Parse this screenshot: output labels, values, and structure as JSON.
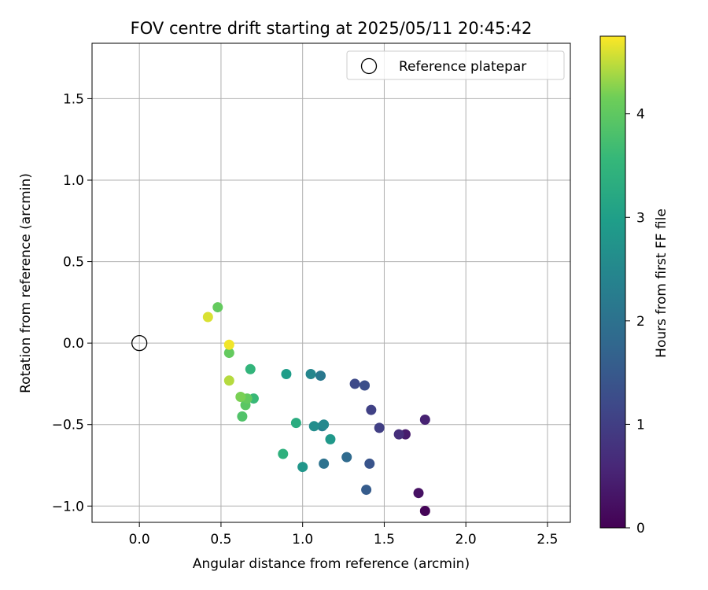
{
  "chart_data": {
    "type": "scatter",
    "title": "FOV centre drift starting at 2025/05/11 20:45:42",
    "xlabel": "Angular distance from reference (arcmin)",
    "ylabel": "Rotation from reference (arcmin)",
    "xlim": [
      -0.29,
      2.64
    ],
    "ylim": [
      -1.1,
      1.84
    ],
    "xticks": [
      0.0,
      0.5,
      1.0,
      1.5,
      2.0,
      2.5
    ],
    "yticks": [
      -1.0,
      -0.5,
      0.0,
      0.5,
      1.0,
      1.5
    ],
    "xtick_labels": [
      "0.0",
      "0.5",
      "1.0",
      "1.5",
      "2.0",
      "2.5"
    ],
    "ytick_labels": [
      "−1.0",
      "−0.5",
      "0.0",
      "0.5",
      "1.0",
      "1.5"
    ],
    "grid": true,
    "legend": {
      "placement": "top-right",
      "entries": [
        {
          "label": "Reference platepar",
          "marker": "open-circle"
        }
      ]
    },
    "reference_point": {
      "x": 0.0,
      "y": 0.0
    },
    "colorbar": {
      "label": "Hours from first FF file",
      "min": 0,
      "max": 4.75,
      "ticks": [
        0,
        1,
        2,
        3,
        4
      ],
      "tick_labels": [
        "0",
        "1",
        "2",
        "3",
        "4"
      ],
      "colormap": "viridis"
    },
    "points": [
      {
        "x": 1.75,
        "y": -1.03,
        "h": 0.05
      },
      {
        "x": 1.71,
        "y": -0.92,
        "h": 0.25
      },
      {
        "x": 1.63,
        "y": -0.56,
        "h": 0.4
      },
      {
        "x": 1.75,
        "y": -0.47,
        "h": 0.5
      },
      {
        "x": 1.59,
        "y": -0.56,
        "h": 0.7
      },
      {
        "x": 1.47,
        "y": -0.52,
        "h": 1.0
      },
      {
        "x": 1.42,
        "y": -0.41,
        "h": 1.05
      },
      {
        "x": 1.32,
        "y": -0.25,
        "h": 1.2
      },
      {
        "x": 1.38,
        "y": -0.26,
        "h": 1.3
      },
      {
        "x": 1.41,
        "y": -0.74,
        "h": 1.4
      },
      {
        "x": 1.39,
        "y": -0.9,
        "h": 1.55
      },
      {
        "x": 1.27,
        "y": -0.7,
        "h": 1.85
      },
      {
        "x": 1.13,
        "y": -0.74,
        "h": 2.0
      },
      {
        "x": 1.11,
        "y": -0.2,
        "h": 2.15
      },
      {
        "x": 1.12,
        "y": -0.51,
        "h": 2.3
      },
      {
        "x": 1.05,
        "y": -0.19,
        "h": 2.45
      },
      {
        "x": 1.13,
        "y": -0.5,
        "h": 2.5
      },
      {
        "x": 1.07,
        "y": -0.51,
        "h": 2.6
      },
      {
        "x": 1.0,
        "y": -0.76,
        "h": 2.8
      },
      {
        "x": 1.17,
        "y": -0.59,
        "h": 2.85
      },
      {
        "x": 0.9,
        "y": -0.19,
        "h": 2.95
      },
      {
        "x": 0.96,
        "y": -0.49,
        "h": 3.3
      },
      {
        "x": 0.88,
        "y": -0.68,
        "h": 3.4
      },
      {
        "x": 0.68,
        "y": -0.16,
        "h": 3.5
      },
      {
        "x": 0.7,
        "y": -0.34,
        "h": 3.6
      },
      {
        "x": 0.63,
        "y": -0.45,
        "h": 3.85
      },
      {
        "x": 0.65,
        "y": -0.38,
        "h": 3.95
      },
      {
        "x": 0.66,
        "y": -0.34,
        "h": 4.05
      },
      {
        "x": 0.55,
        "y": -0.06,
        "h": 4.05
      },
      {
        "x": 0.48,
        "y": 0.22,
        "h": 4.05
      },
      {
        "x": 0.62,
        "y": -0.33,
        "h": 4.2
      },
      {
        "x": 0.55,
        "y": -0.23,
        "h": 4.45
      },
      {
        "x": 0.42,
        "y": 0.16,
        "h": 4.6
      },
      {
        "x": 0.55,
        "y": -0.01,
        "h": 4.7
      }
    ]
  }
}
